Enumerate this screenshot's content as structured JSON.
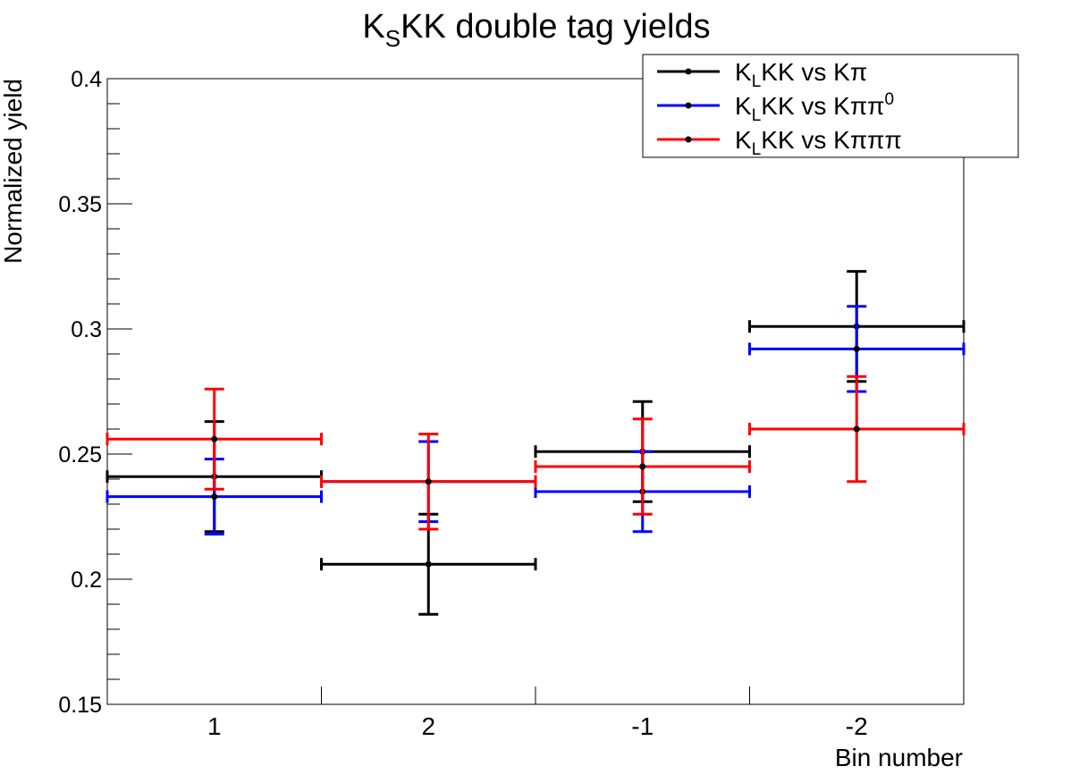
{
  "chart_data": {
    "type": "scatter",
    "title": {
      "main": "K",
      "sub": "S",
      "rest": "KK double tag yields"
    },
    "xlabel": "Bin number",
    "ylabel": "Normalized yield",
    "ylim": [
      0.15,
      0.4
    ],
    "categories": [
      "1",
      "2",
      "-1",
      "-2"
    ],
    "y_ticks": [
      "0.15",
      "0.2",
      "0.25",
      "0.3",
      "0.35",
      "0.4"
    ],
    "legend_position": "top-right",
    "series": [
      {
        "name": "KLKK vs Kπ",
        "legend": {
          "a": "K",
          "sub": "L",
          "b": "KK vs Kπ",
          "sup": ""
        },
        "color": "#000000",
        "values": [
          0.241,
          0.206,
          0.251,
          0.301
        ],
        "errors": [
          0.022,
          0.02,
          0.02,
          0.022
        ]
      },
      {
        "name": "KLKK vs Kππ0",
        "legend": {
          "a": "K",
          "sub": "L",
          "b": "KK vs Kππ",
          "sup": "0"
        },
        "color": "#0000ff",
        "values": [
          0.233,
          0.239,
          0.235,
          0.292
        ],
        "errors": [
          0.015,
          0.016,
          0.016,
          0.017
        ]
      },
      {
        "name": "KLKK vs Kπππ",
        "legend": {
          "a": "K",
          "sub": "L",
          "b": "KK vs Kπππ",
          "sup": ""
        },
        "color": "#ff0000",
        "values": [
          0.256,
          0.239,
          0.245,
          0.26
        ],
        "errors": [
          0.02,
          0.019,
          0.019,
          0.021
        ]
      }
    ]
  }
}
